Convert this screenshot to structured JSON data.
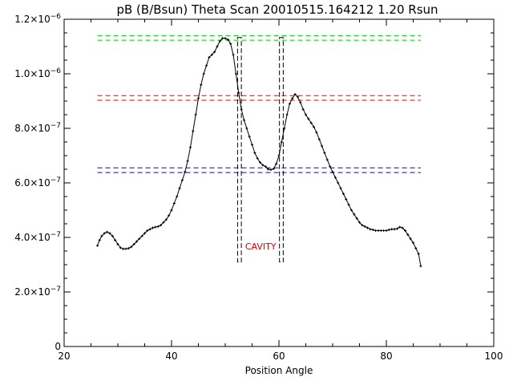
{
  "chart_data": {
    "type": "line",
    "title": "pB (B/Bsun) Theta Scan 20010515.164212 1.20 Rsun",
    "xlabel": "Position Angle",
    "ylabel": "",
    "xlim": [
      20,
      100
    ],
    "ylim": [
      0,
      1.2e-06
    ],
    "grid": false,
    "x_ticks": [
      {
        "value": 20,
        "label": "20"
      },
      {
        "value": 40,
        "label": "40"
      },
      {
        "value": 60,
        "label": "60"
      },
      {
        "value": 80,
        "label": "80"
      },
      {
        "value": 100,
        "label": "100"
      }
    ],
    "y_ticks": [
      {
        "value": 0,
        "label": "0"
      },
      {
        "value": 2e-07,
        "mantissa": "2.0×10",
        "exp": "−7"
      },
      {
        "value": 4e-07,
        "mantissa": "4.0×10",
        "exp": "−7"
      },
      {
        "value": 6e-07,
        "mantissa": "6.0×10",
        "exp": "−7"
      },
      {
        "value": 8e-07,
        "mantissa": "8.0×10",
        "exp": "−7"
      },
      {
        "value": 1e-06,
        "mantissa": "1.0×10",
        "exp": "−6"
      },
      {
        "value": 1.2e-06,
        "mantissa": "1.2×10",
        "exp": "−6"
      }
    ],
    "series": [
      {
        "color": "#000000",
        "marker": "plus",
        "x": [
          26.2,
          26.6,
          27.0,
          27.5,
          28.0,
          28.5,
          29.0,
          29.5,
          30.0,
          30.5,
          31.0,
          31.5,
          32.0,
          32.5,
          33.0,
          33.5,
          34.0,
          34.5,
          35.0,
          35.5,
          36.0,
          36.5,
          37.0,
          37.5,
          38.0,
          38.5,
          39.0,
          39.5,
          40.0,
          40.5,
          41.0,
          41.5,
          42.0,
          42.5,
          43.0,
          43.5,
          44.0,
          44.5,
          45.0,
          45.5,
          46.0,
          46.5,
          47.0,
          47.5,
          48.0,
          48.5,
          49.0,
          49.5,
          50.0,
          50.5,
          51.0,
          51.5,
          52.0,
          52.5,
          53.0,
          53.5,
          54.0,
          54.5,
          55.0,
          55.5,
          56.0,
          56.5,
          57.0,
          57.5,
          58.0,
          58.5,
          59.0,
          59.5,
          60.0,
          60.5,
          61.0,
          61.5,
          62.0,
          62.5,
          63.0,
          63.5,
          64.0,
          64.5,
          65.0,
          65.5,
          66.0,
          66.5,
          67.0,
          67.5,
          68.0,
          68.5,
          69.0,
          69.5,
          70.0,
          70.5,
          71.0,
          71.5,
          72.0,
          72.5,
          73.0,
          73.5,
          74.0,
          74.5,
          75.0,
          75.5,
          76.0,
          76.5,
          77.0,
          77.5,
          78.0,
          78.5,
          79.0,
          79.5,
          80.0,
          80.5,
          81.0,
          81.5,
          82.0,
          82.5,
          83.0,
          83.5,
          84.0,
          84.5,
          85.0,
          85.5,
          86.0,
          86.4
        ],
        "y": [
          3.7e-07,
          3.9e-07,
          4.05e-07,
          4.15e-07,
          4.2e-07,
          4.15e-07,
          4.05e-07,
          3.9e-07,
          3.75e-07,
          3.62e-07,
          3.58e-07,
          3.58e-07,
          3.6e-07,
          3.65e-07,
          3.75e-07,
          3.85e-07,
          3.95e-07,
          4.05e-07,
          4.15e-07,
          4.25e-07,
          4.3e-07,
          4.35e-07,
          4.38e-07,
          4.4e-07,
          4.45e-07,
          4.55e-07,
          4.65e-07,
          4.8e-07,
          5e-07,
          5.25e-07,
          5.5e-07,
          5.8e-07,
          6.1e-07,
          6.4e-07,
          6.8e-07,
          7.3e-07,
          7.9e-07,
          8.5e-07,
          9.1e-07,
          9.6e-07,
          1e-06,
          1.03e-06,
          1.06e-06,
          1.07e-06,
          1.08e-06,
          1.1e-06,
          1.12e-06,
          1.13e-06,
          1.13e-06,
          1.125e-06,
          1.11e-06,
          1.07e-06,
          1e-06,
          9.3e-07,
          8.7e-07,
          8.3e-07,
          8e-07,
          7.7e-07,
          7.4e-07,
          7.1e-07,
          6.9e-07,
          6.75e-07,
          6.65e-07,
          6.6e-07,
          6.5e-07,
          6.48e-07,
          6.52e-07,
          6.7e-07,
          7e-07,
          7.5e-07,
          8e-07,
          8.5e-07,
          8.9e-07,
          9.1e-07,
          9.25e-07,
          9.15e-07,
          8.95e-07,
          8.7e-07,
          8.5e-07,
          8.35e-07,
          8.2e-07,
          8.05e-07,
          7.85e-07,
          7.6e-07,
          7.35e-07,
          7.1e-07,
          6.85e-07,
          6.6e-07,
          6.4e-07,
          6.2e-07,
          6e-07,
          5.8e-07,
          5.6e-07,
          5.4e-07,
          5.2e-07,
          5e-07,
          4.85e-07,
          4.7e-07,
          4.55e-07,
          4.45e-07,
          4.4e-07,
          4.35e-07,
          4.3e-07,
          4.28e-07,
          4.25e-07,
          4.25e-07,
          4.25e-07,
          4.25e-07,
          4.25e-07,
          4.28e-07,
          4.3e-07,
          4.3e-07,
          4.32e-07,
          4.38e-07,
          4.35e-07,
          4.25e-07,
          4.1e-07,
          3.95e-07,
          3.8e-07,
          3.6e-07,
          3.4e-07,
          2.95e-07
        ]
      }
    ],
    "reference_lines": [
      {
        "color": "#00cc00",
        "y": [
          1.14e-06,
          1.123e-06
        ],
        "x_range": [
          26.2,
          86.4
        ]
      },
      {
        "color": "#dd0000",
        "y": [
          9.2e-07,
          9.03e-07
        ],
        "x_range": [
          26.2,
          86.4
        ]
      },
      {
        "color": "#0000dd",
        "y": [
          6.55e-07,
          6.38e-07
        ],
        "x_range": [
          26.2,
          86.4
        ]
      }
    ],
    "cavity_boxes": [
      {
        "x": [
          52.3,
          53.0
        ],
        "y": [
          3.1e-07,
          1.133e-06
        ]
      },
      {
        "x": [
          60.1,
          60.8
        ],
        "y": [
          3.1e-07,
          1.133e-06
        ]
      }
    ],
    "annotations": [
      {
        "text": "CAVITY",
        "x": 56.6,
        "y": 3.5e-07,
        "color": "#dd0000"
      }
    ]
  }
}
